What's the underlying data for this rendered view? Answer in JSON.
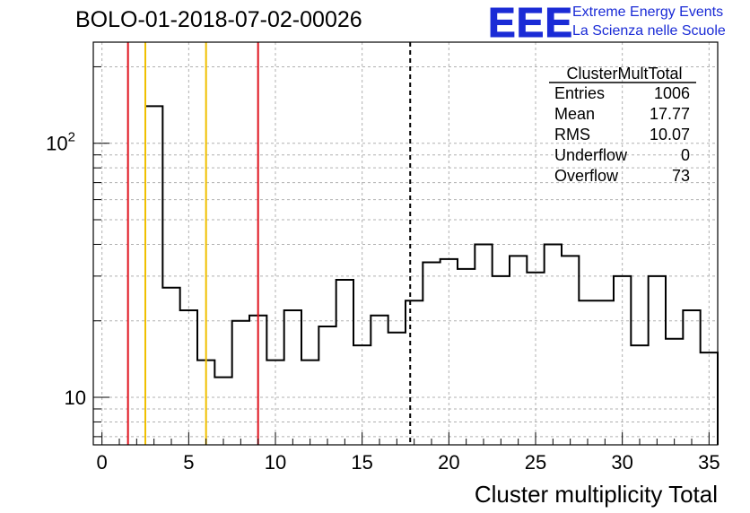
{
  "header": {
    "run_title": "BOLO-01-2018-07-02-00026"
  },
  "logo": {
    "mark": "EEE",
    "line1": "Extreme Energy Events",
    "line2": "La Scienza nelle Scuole"
  },
  "stats_box": {
    "title": "ClusterMultTotal",
    "rows": [
      {
        "label": "Entries",
        "value": "1006"
      },
      {
        "label": "Mean",
        "value": "17.77"
      },
      {
        "label": "RMS",
        "value": "10.07"
      },
      {
        "label": "Underflow",
        "value": "0"
      },
      {
        "label": "Overflow",
        "value": "73"
      }
    ]
  },
  "colors": {
    "histogram": "#000000",
    "red_lines": "#e0141e",
    "yellow_lines": "#f0c000",
    "grid": "#b0b0b0"
  },
  "chart_data": {
    "type": "bar",
    "style": "step-histogram",
    "title": "",
    "xlabel": "Cluster multiplicity Total",
    "ylabel": "",
    "y_scale": "log",
    "xlim": [
      -0.5,
      35.5
    ],
    "ylim": [
      6.5,
      250
    ],
    "grid": true,
    "x_ticks": [
      0,
      5,
      10,
      15,
      20,
      25,
      30,
      35
    ],
    "y_tick_labels": [
      {
        "value": 10,
        "label": "10"
      },
      {
        "value": 100,
        "label": "10",
        "exp": "2"
      }
    ],
    "bin_width": 1,
    "bin_centers": [
      3,
      4,
      5,
      6,
      7,
      8,
      9,
      10,
      11,
      12,
      13,
      14,
      15,
      16,
      17,
      18,
      19,
      20,
      21,
      22,
      23,
      24,
      25,
      26,
      27,
      28,
      29,
      30,
      31,
      32,
      33,
      34,
      35
    ],
    "values": [
      140,
      27,
      22,
      14,
      12,
      20,
      21,
      14,
      22,
      14,
      19,
      29,
      16,
      21,
      18,
      24,
      34,
      35,
      32,
      40,
      30,
      36,
      31,
      40,
      36,
      24,
      24,
      30,
      16,
      30,
      17,
      22,
      15
    ],
    "vertical_lines": [
      {
        "x": 1.5,
        "color": "red",
        "style": "solid"
      },
      {
        "x": 2.5,
        "color": "yellow",
        "style": "solid"
      },
      {
        "x": 6.0,
        "color": "yellow",
        "style": "solid"
      },
      {
        "x": 9.0,
        "color": "red",
        "style": "solid"
      },
      {
        "x": 17.77,
        "color": "black",
        "style": "dashed"
      }
    ]
  }
}
